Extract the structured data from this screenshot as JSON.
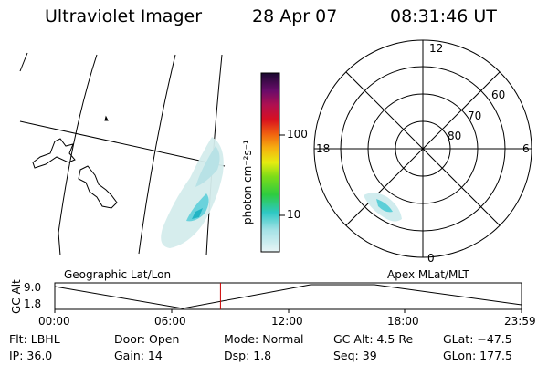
{
  "header": {
    "instrument": "Ultraviolet Imager",
    "date": "28 Apr 07",
    "time": "08:31:46 UT"
  },
  "colorbar": {
    "unit_label": "photon cm⁻²s⁻¹",
    "ticks": [
      "100",
      "10"
    ]
  },
  "polar_plot": {
    "mlt_labels": {
      "top": "12",
      "left": "18",
      "right": "6",
      "bottom": "0"
    },
    "lat_labels": [
      "60",
      "70",
      "80"
    ]
  },
  "timeline": {
    "axis_label": "GC Alt",
    "y_ticks": [
      "9.0",
      "1.8"
    ],
    "x_ticks": [
      "00:00",
      "06:00",
      "12:00",
      "18:00",
      "23:59"
    ],
    "left_title": "Geographic Lat/Lon",
    "right_title": "Apex MLat/MLT",
    "current_time_fraction": 0.355,
    "marker_color": "#cc0000"
  },
  "status": {
    "flt": "Flt: LBHL",
    "ip": "IP: 36.0",
    "door": "Door: Open",
    "gain": "Gain: 14",
    "mode": "Mode: Normal",
    "dsp": "Dsp:     1.8",
    "gc_alt": "GC Alt: 4.5 Re",
    "seq": "Seq: 39",
    "glat": "GLat: −47.5",
    "glon": "GLon: 177.5"
  }
}
